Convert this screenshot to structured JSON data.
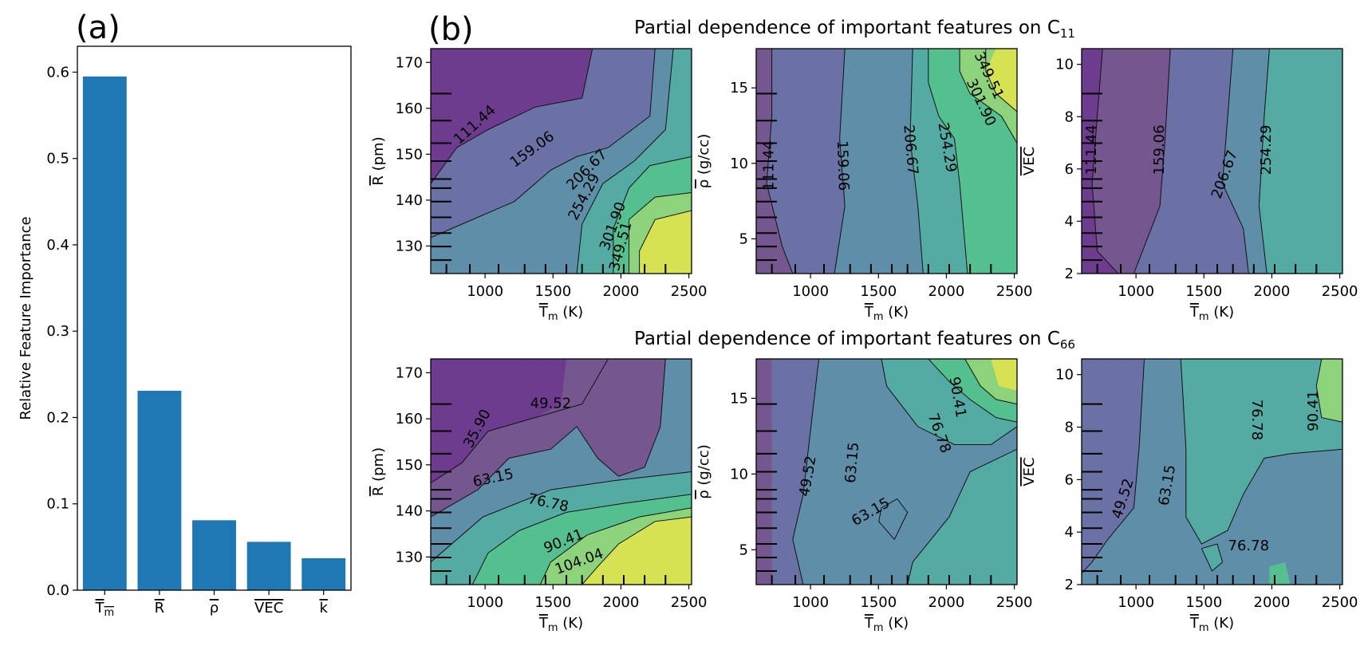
{
  "panel_a_letter": "(a)",
  "panel_b_letter": "(b)",
  "c11_title": "Partial dependence of important features on C",
  "c11_sub": "11",
  "c66_title": "Partial dependence of important features on C",
  "c66_sub": "66",
  "chart_data": [
    {
      "id": "a",
      "type": "bar",
      "ylabel": "Relative Feature Importance",
      "categories": [
        "Tm",
        "R",
        "ρ",
        "VEC",
        "k"
      ],
      "values": [
        0.595,
        0.231,
        0.081,
        0.056,
        0.037
      ],
      "ylim": [
        0,
        0.63
      ],
      "yticks": [
        "0.0",
        "0.1",
        "0.2",
        "0.3",
        "0.4",
        "0.5",
        "0.6"
      ],
      "color": "#1f77b4"
    },
    {
      "id": "b1",
      "type": "contour",
      "target": "C11",
      "xlabel": "Tm (K)",
      "ylabel": "R (pm)",
      "xlabel_base": "T",
      "xlabel_sub": "m",
      "xlabel_unit": " (K)",
      "ylabel_base": "R",
      "ylabel_unit": " (pm)",
      "xlim": [
        600,
        2520
      ],
      "ylim": [
        124,
        173
      ],
      "xticks": [
        "1000",
        "1500",
        "2000",
        "2500"
      ],
      "yticks": [
        "130",
        "140",
        "150",
        "160",
        "170"
      ],
      "contour_labels": [
        "111.44",
        "159.06",
        "206.67",
        "254.29",
        "301.90",
        "349.51"
      ]
    },
    {
      "id": "b2",
      "type": "contour",
      "target": "C11",
      "xlabel": "Tm (K)",
      "ylabel": "ρ (g/cc)",
      "xlabel_base": "T",
      "xlabel_sub": "m",
      "xlabel_unit": " (K)",
      "ylabel_base": "ρ",
      "ylabel_unit": " (g/cc)",
      "xlim": [
        600,
        2520
      ],
      "ylim": [
        2.7,
        17.6
      ],
      "xticks": [
        "1000",
        "1500",
        "2000",
        "2500"
      ],
      "yticks": [
        "5",
        "10",
        "15"
      ],
      "contour_labels": [
        "111.44",
        "159.06",
        "206.67",
        "254.29",
        "301.90",
        "349.51"
      ]
    },
    {
      "id": "b3",
      "type": "contour",
      "target": "C11",
      "xlabel": "Tm (K)",
      "ylabel": "VEC",
      "xlabel_base": "T",
      "xlabel_sub": "m",
      "xlabel_unit": " (K)",
      "ylabel_base": "VEC",
      "ylabel_unit": "",
      "xlim": [
        600,
        2520
      ],
      "ylim": [
        2,
        10.6
      ],
      "xticks": [
        "1000",
        "1500",
        "2000",
        "2500"
      ],
      "yticks": [
        "2",
        "4",
        "6",
        "8",
        "10"
      ],
      "contour_labels": [
        "111.44",
        "159.06",
        "206.67",
        "254.29"
      ]
    },
    {
      "id": "b4",
      "type": "contour",
      "target": "C66",
      "xlabel": "Tm (K)",
      "ylabel": "R (pm)",
      "xlabel_base": "T",
      "xlabel_sub": "m",
      "xlabel_unit": " (K)",
      "ylabel_base": "R",
      "ylabel_unit": " (pm)",
      "xlim": [
        600,
        2520
      ],
      "ylim": [
        124,
        173
      ],
      "xticks": [
        "1000",
        "1500",
        "2000",
        "2500"
      ],
      "yticks": [
        "130",
        "140",
        "150",
        "160",
        "170"
      ],
      "contour_labels": [
        "35.90",
        "49.52",
        "63.15",
        "76.78",
        "90.41",
        "104.04"
      ]
    },
    {
      "id": "b5",
      "type": "contour",
      "target": "C66",
      "xlabel": "Tm (K)",
      "ylabel": "ρ (g/cc)",
      "xlabel_base": "T",
      "xlabel_sub": "m",
      "xlabel_unit": " (K)",
      "ylabel_base": "ρ",
      "ylabel_unit": " (g/cc)",
      "xlim": [
        600,
        2520
      ],
      "ylim": [
        2.7,
        17.6
      ],
      "xticks": [
        "1000",
        "1500",
        "2000",
        "2500"
      ],
      "yticks": [
        "5",
        "10",
        "15"
      ],
      "contour_labels": [
        "49.52",
        "63.15",
        "63.15",
        "76.78",
        "90.41"
      ]
    },
    {
      "id": "b6",
      "type": "contour",
      "target": "C66",
      "xlabel": "Tm (K)",
      "ylabel": "VEC",
      "xlabel_base": "T",
      "xlabel_sub": "m",
      "xlabel_unit": " (K)",
      "ylabel_base": "VEC",
      "ylabel_unit": "",
      "xlim": [
        600,
        2520
      ],
      "ylim": [
        2,
        10.6
      ],
      "xticks": [
        "1000",
        "1500",
        "2000",
        "2500"
      ],
      "yticks": [
        "2",
        "4",
        "6",
        "8",
        "10"
      ],
      "contour_labels": [
        "49.52",
        "63.15",
        "76.78",
        "76.78",
        "90.41"
      ]
    }
  ]
}
